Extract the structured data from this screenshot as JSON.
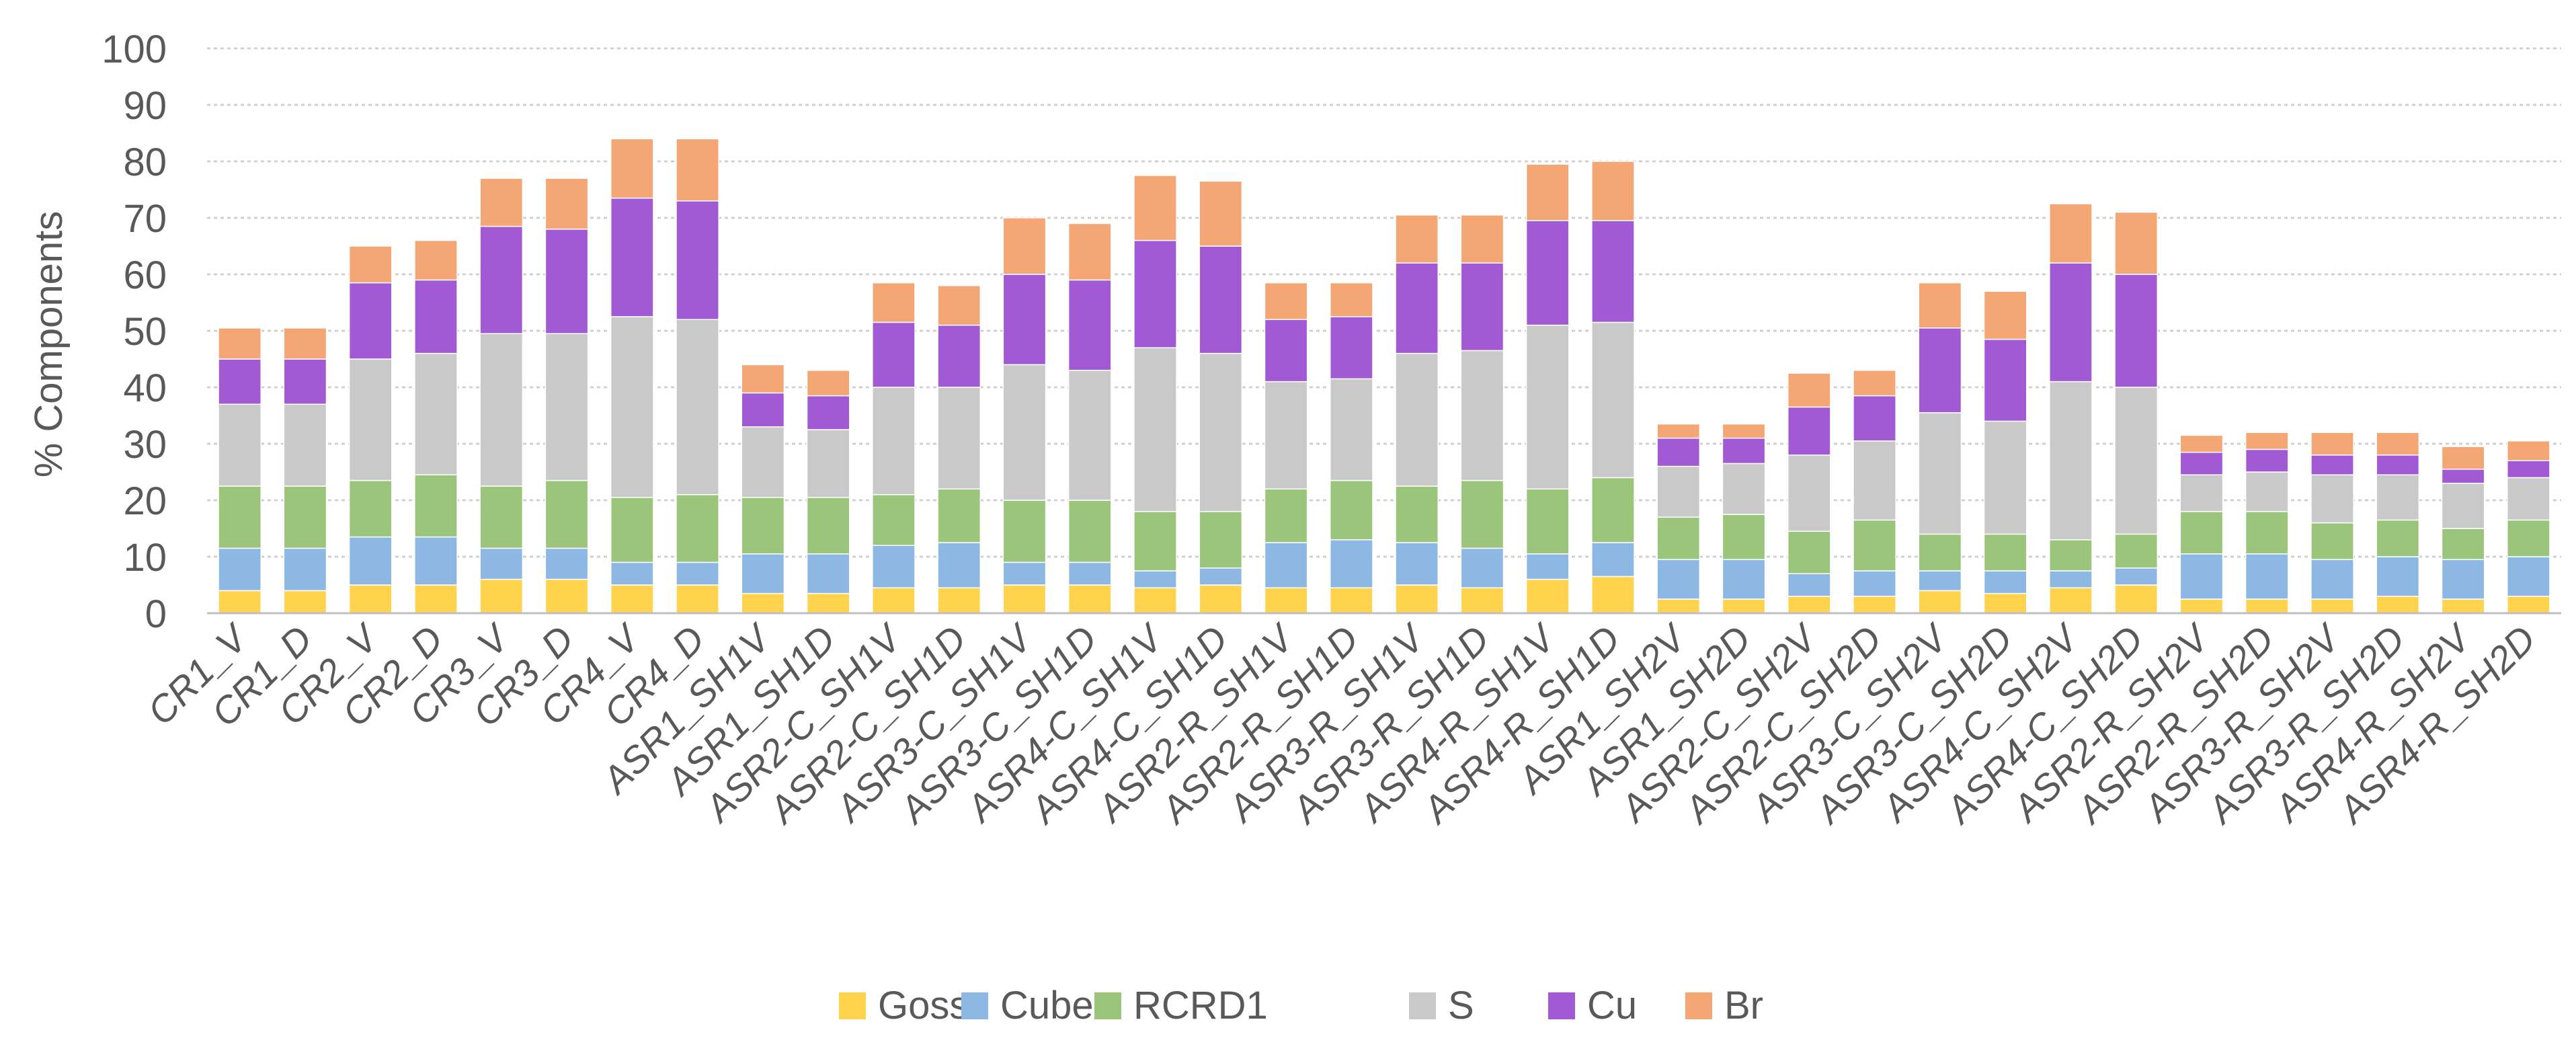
{
  "chart_data": {
    "type": "bar",
    "stacked": true,
    "title": "",
    "xlabel": "",
    "ylabel": "% Components",
    "ylim": [
      0,
      100
    ],
    "yticks": [
      0,
      10,
      20,
      30,
      40,
      50,
      60,
      70,
      80,
      90,
      100
    ],
    "grid": true,
    "legend_position": "bottom",
    "categories": [
      "CR1_V",
      "CR1_D",
      "CR2_V",
      "CR2_D",
      "CR3_V",
      "CR3_D",
      "CR4_V",
      "CR4_D",
      "ASR1_SH1V",
      "ASR1_SH1D",
      "ASR2-C_SH1V",
      "ASR2-C_SH1D",
      "ASR3-C_SH1V",
      "ASR3-C_SH1D",
      "ASR4-C_SH1V",
      "ASR4-C_SH1D",
      "ASR2-R_SH1V",
      "ASR2-R_SH1D",
      "ASR3-R_SH1V",
      "ASR3-R_SH1D",
      "ASR4-R_SH1V",
      "ASR4-R_SH1D",
      "ASR1_SH2V",
      "ASR1_SH2D",
      "ASR2-C_SH2V",
      "ASR2-C_SH2D",
      "ASR3-C_SH2V",
      "ASR3-C_SH2D",
      "ASR4-C_SH2V",
      "ASR4-C_SH2D",
      "ASR2-R_SH2V",
      "ASR2-R_SH2D",
      "ASR3-R_SH2V",
      "ASR3-R_SH2D",
      "ASR4-R_SH2V",
      "ASR4-R_SH2D"
    ],
    "series": [
      {
        "name": "Goss",
        "color": "#FFD34D",
        "values": [
          4,
          4,
          5,
          5,
          6,
          6,
          5,
          5,
          3.5,
          3.5,
          4.5,
          4.5,
          5,
          5,
          4.5,
          5,
          4.5,
          4.5,
          5,
          4.5,
          6,
          6.5,
          2.5,
          2.5,
          3,
          3,
          4,
          3.5,
          4.5,
          5,
          2.5,
          2.5,
          2.5,
          3,
          2.5,
          3
        ]
      },
      {
        "name": "Cube",
        "color": "#8DB8E3",
        "values": [
          7.5,
          7.5,
          8.5,
          8.5,
          5.5,
          5.5,
          4,
          4,
          7,
          7,
          7.5,
          8,
          4,
          4,
          3,
          3,
          8,
          8.5,
          7.5,
          7,
          4.5,
          6,
          7,
          7,
          4,
          4.5,
          3.5,
          4,
          3,
          3,
          8,
          8,
          7,
          7,
          7,
          7
        ]
      },
      {
        "name": "RCRD1",
        "color": "#9BC57A",
        "values": [
          11,
          11,
          10,
          11,
          11,
          12,
          11.5,
          12,
          10,
          10,
          9,
          9.5,
          11,
          11,
          10.5,
          10,
          9.5,
          10.5,
          10,
          12,
          11.5,
          11.5,
          7.5,
          8,
          7.5,
          9,
          6.5,
          6.5,
          5.5,
          6,
          7.5,
          7.5,
          6.5,
          6.5,
          5.5,
          6.5
        ]
      },
      {
        "name": "S",
        "color": "#C9C9C9",
        "values": [
          14.5,
          14.5,
          21.5,
          21.5,
          27,
          26,
          32,
          31,
          12.5,
          12,
          19,
          18,
          24,
          23,
          29,
          28,
          19,
          18,
          23.5,
          23,
          29,
          27.5,
          9,
          9,
          13.5,
          14,
          21.5,
          20,
          28,
          26,
          6.5,
          7,
          8.5,
          8,
          8,
          7.5
        ]
      },
      {
        "name": "Cu",
        "color": "#A15AD4",
        "values": [
          8,
          8,
          13.5,
          13,
          19,
          18.5,
          21,
          21,
          6,
          6,
          11.5,
          11,
          16,
          16,
          19,
          19,
          11,
          11,
          16,
          15.5,
          18.5,
          18,
          5,
          4.5,
          8.5,
          8,
          15,
          14.5,
          21,
          20,
          4,
          4,
          3.5,
          3.5,
          2.5,
          3
        ]
      },
      {
        "name": "Br",
        "color": "#F4A674",
        "values": [
          5.5,
          5.5,
          6.5,
          7,
          8.5,
          9,
          10.5,
          11,
          5,
          4.5,
          7,
          7,
          10,
          10,
          11.5,
          11.5,
          6.5,
          6,
          8.5,
          8.5,
          10,
          10.5,
          2.5,
          2.5,
          6,
          4.5,
          8,
          8.5,
          10.5,
          11,
          3,
          3,
          4,
          4,
          4,
          3.5
        ]
      }
    ]
  }
}
